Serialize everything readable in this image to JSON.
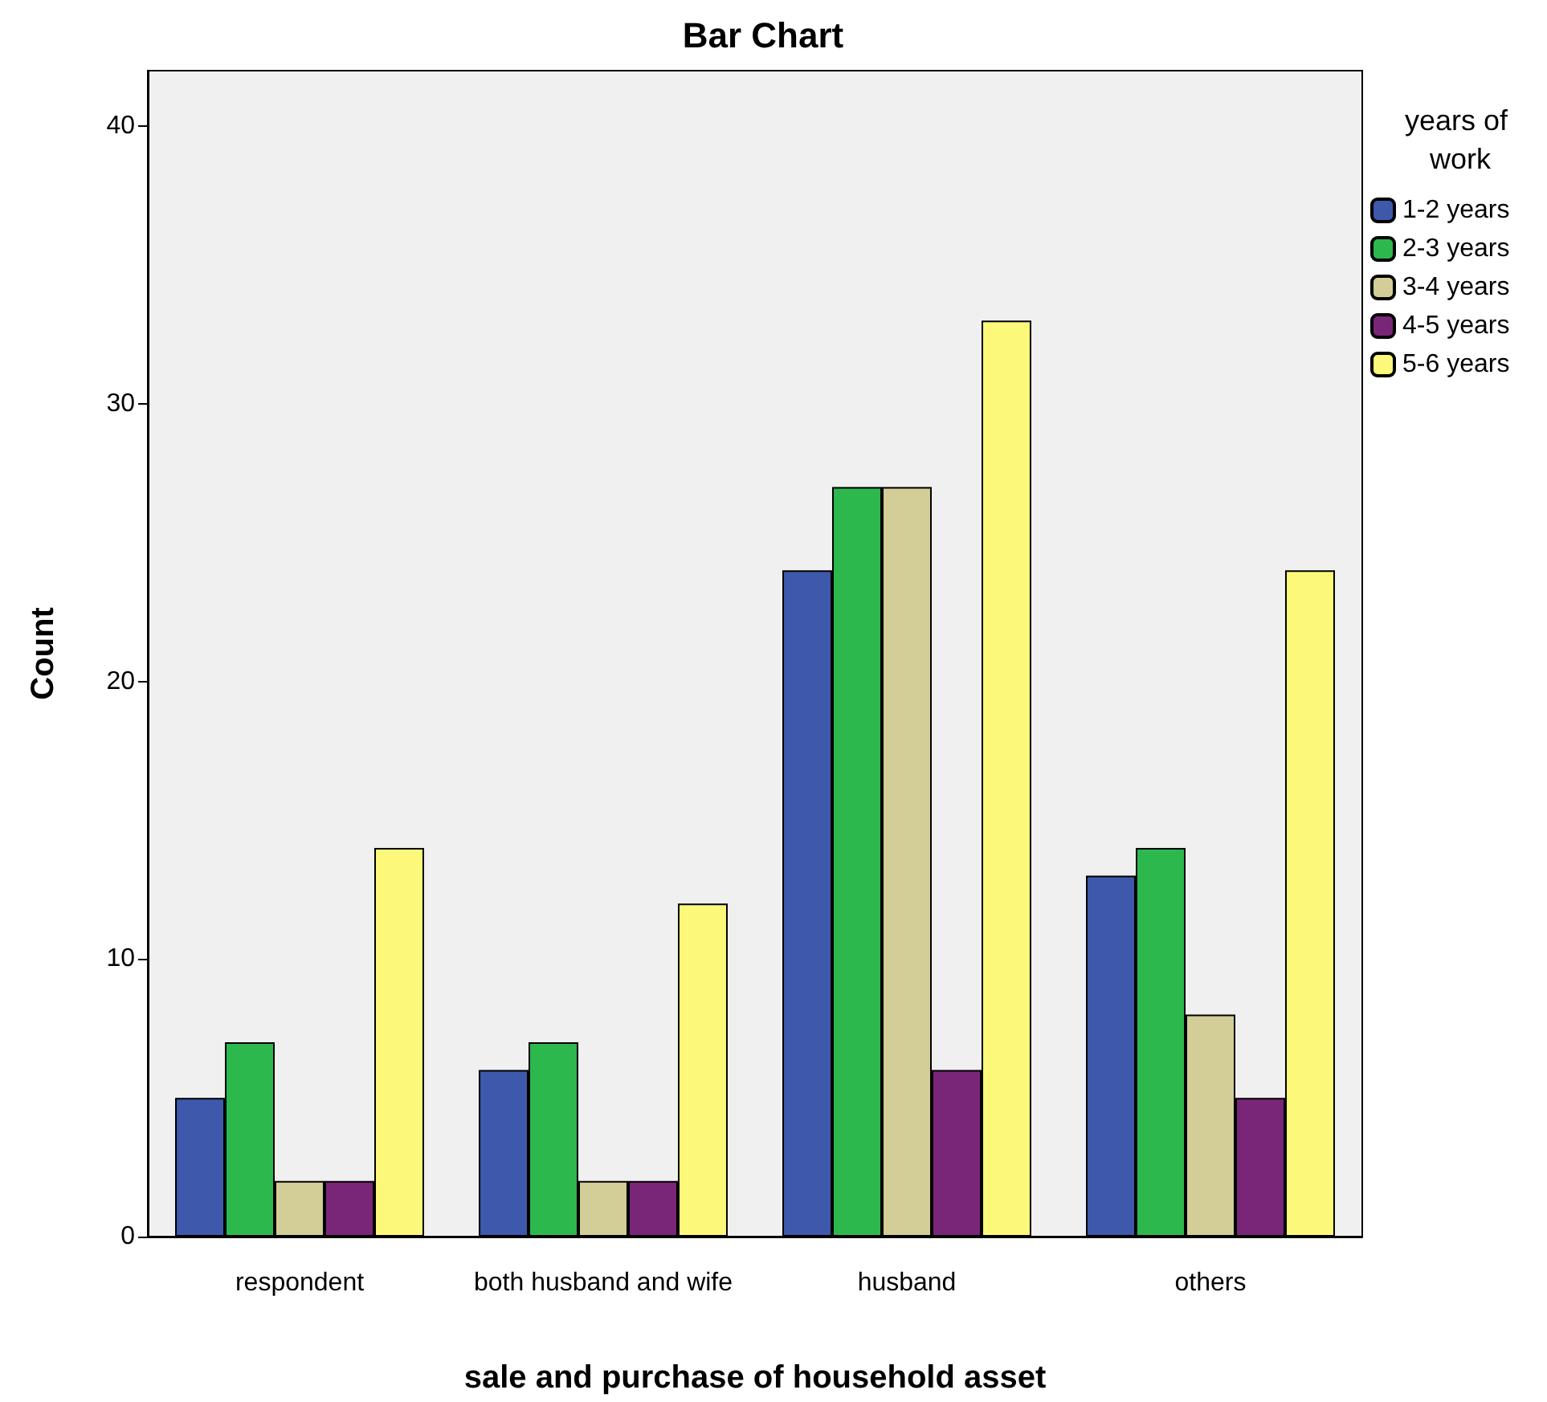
{
  "chart_data": {
    "type": "bar",
    "title": "Bar Chart",
    "xlabel": "sale and purchase of household asset",
    "ylabel": "Count",
    "legend_title": "years of work",
    "categories": [
      "respondent",
      "both husband and wife",
      "husband",
      "others"
    ],
    "series": [
      {
        "name": "1-2 years",
        "color": "#3e58ac",
        "values": [
          5,
          6,
          24,
          13
        ]
      },
      {
        "name": "2-3 years",
        "color": "#2db84d",
        "values": [
          7,
          7,
          27,
          14
        ]
      },
      {
        "name": "3-4 years",
        "color": "#d3ce97",
        "values": [
          2,
          2,
          27,
          8
        ]
      },
      {
        "name": "4-5 years",
        "color": "#7a2678",
        "values": [
          2,
          2,
          6,
          5
        ]
      },
      {
        "name": "5-6 years",
        "color": "#fbf87a",
        "values": [
          14,
          12,
          33,
          24
        ]
      }
    ],
    "ylim": [
      0,
      42
    ],
    "yticks": [
      0,
      10,
      20,
      30,
      40
    ],
    "grid": false,
    "legend": "right"
  }
}
